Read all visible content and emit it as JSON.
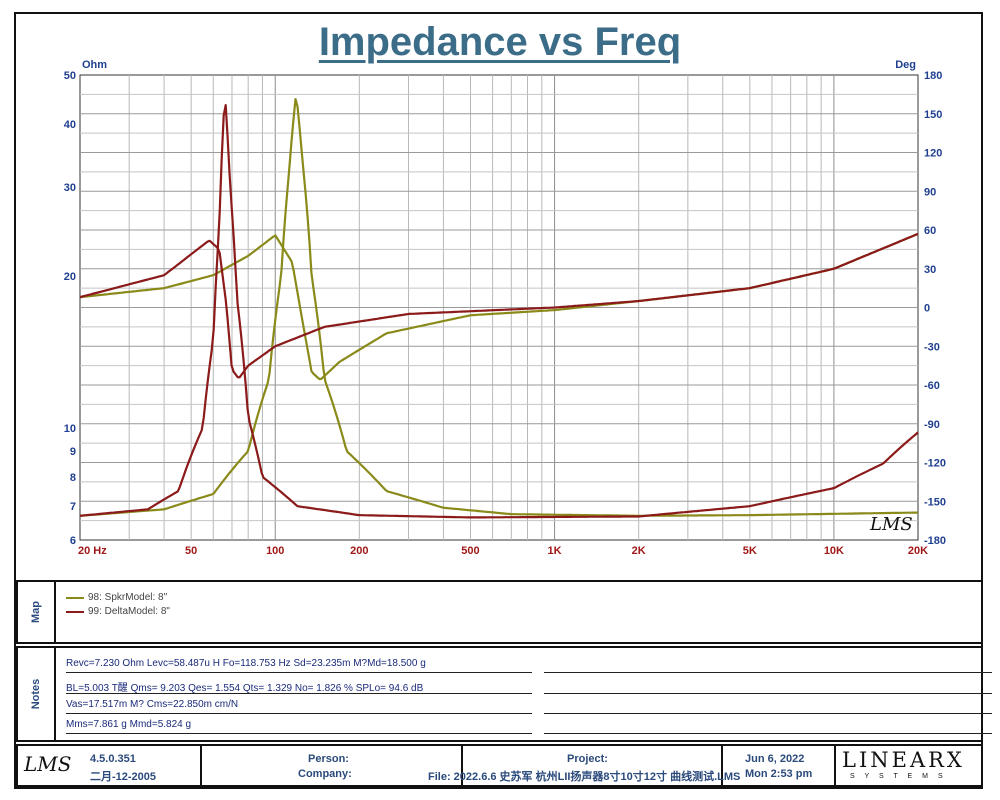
{
  "title": "Impedance vs Freq",
  "chart_data": {
    "type": "line",
    "xscale": "log",
    "xlim": [
      20,
      20000
    ],
    "ylim_left": [
      6,
      50
    ],
    "yscale_left": "log",
    "ylim_right": [
      -180,
      180
    ],
    "left_unit": "Ohm",
    "right_unit": "Deg",
    "x_tick_labels": [
      "20  Hz",
      "50",
      "100",
      "200",
      "500",
      "1K",
      "2K",
      "5K",
      "10K",
      "20K"
    ],
    "x_tick_values": [
      20,
      50,
      100,
      200,
      500,
      1000,
      2000,
      5000,
      10000,
      20000
    ],
    "left_tick_labels": [
      "50",
      "40",
      "30",
      "20",
      "10",
      "9",
      "8",
      "7",
      "6"
    ],
    "left_tick_values": [
      50,
      40,
      30,
      20,
      10,
      9,
      8,
      7,
      6
    ],
    "right_tick_labels": [
      "180",
      "150",
      "120",
      "90",
      "60",
      "30",
      "0",
      "-30",
      "-60",
      "-90",
      "-120",
      "-150",
      "-180"
    ],
    "right_tick_values": [
      180,
      150,
      120,
      90,
      60,
      30,
      0,
      -30,
      -60,
      -90,
      -120,
      -150,
      -180
    ],
    "watermark": "LMS",
    "colors": {
      "spkr": "#8a8a1a",
      "delta": "#8b1a1a",
      "grid": "#a9a9a9",
      "axis_text": "#1f3f8f"
    },
    "series": [
      {
        "name": "98: SpkrModel: 8\"",
        "quantity": "impedance",
        "axis": "left",
        "points": [
          [
            20,
            6.7
          ],
          [
            40,
            6.9
          ],
          [
            60,
            7.4
          ],
          [
            80,
            9.0
          ],
          [
            95,
            12.5
          ],
          [
            105,
            20
          ],
          [
            112,
            32
          ],
          [
            118.75,
            46
          ],
          [
            125,
            34
          ],
          [
            135,
            20
          ],
          [
            150,
            12.5
          ],
          [
            180,
            9.0
          ],
          [
            250,
            7.5
          ],
          [
            400,
            6.95
          ],
          [
            700,
            6.75
          ],
          [
            2000,
            6.7
          ],
          [
            5000,
            6.72
          ],
          [
            20000,
            6.8
          ]
        ]
      },
      {
        "name": "98: SpkrModel: 8\"",
        "quantity": "phase",
        "axis": "right",
        "points": [
          [
            20,
            8
          ],
          [
            40,
            15
          ],
          [
            60,
            25
          ],
          [
            80,
            40
          ],
          [
            100,
            56
          ],
          [
            115,
            35
          ],
          [
            125,
            -10
          ],
          [
            135,
            -50
          ],
          [
            145,
            -56
          ],
          [
            170,
            -42
          ],
          [
            250,
            -20
          ],
          [
            500,
            -6
          ],
          [
            1000,
            -2
          ],
          [
            2000,
            5
          ],
          [
            5000,
            15
          ],
          [
            10000,
            30
          ],
          [
            20000,
            57
          ]
        ]
      },
      {
        "name": "99: DeltaModel: 8\"",
        "quantity": "impedance",
        "axis": "left",
        "points": [
          [
            20,
            6.7
          ],
          [
            35,
            6.9
          ],
          [
            45,
            7.5
          ],
          [
            55,
            10
          ],
          [
            60,
            15
          ],
          [
            63,
            25
          ],
          [
            66,
            46
          ],
          [
            69,
            30
          ],
          [
            73,
            18
          ],
          [
            80,
            10.5
          ],
          [
            90,
            8.0
          ],
          [
            120,
            7.0
          ],
          [
            200,
            6.72
          ],
          [
            500,
            6.65
          ],
          [
            2000,
            6.68
          ],
          [
            5000,
            7.0
          ],
          [
            10000,
            7.6
          ],
          [
            15000,
            8.5
          ],
          [
            20000,
            9.8
          ]
        ]
      },
      {
        "name": "99: DeltaModel: 8\"",
        "quantity": "phase",
        "axis": "right",
        "points": [
          [
            20,
            8
          ],
          [
            40,
            25
          ],
          [
            58,
            52
          ],
          [
            63,
            45
          ],
          [
            67,
            0
          ],
          [
            70,
            -48
          ],
          [
            74,
            -55
          ],
          [
            80,
            -45
          ],
          [
            100,
            -30
          ],
          [
            150,
            -15
          ],
          [
            300,
            -5
          ],
          [
            1000,
            0
          ],
          [
            2000,
            5
          ],
          [
            5000,
            15
          ],
          [
            10000,
            30
          ],
          [
            20000,
            57
          ]
        ]
      }
    ]
  },
  "map": {
    "label": "Map",
    "items": [
      {
        "text": "98: SpkrModel: 8\"",
        "color": "#8a8a1a"
      },
      {
        "text": "99: DeltaModel: 8\"",
        "color": "#8b1a1a"
      }
    ]
  },
  "notes": {
    "label": "Notes",
    "lines": [
      "Revc=7.230 Ohm  Levc=58.487u H  Fo=118.753 Hz  Sd=23.235m M?Md=18.500 g",
      "BL=5.003 T醒  Qms= 9.203  Qes= 1.554  Qts= 1.329  No= 1.826 %  SPLo= 94.6 dB",
      "Vas=17.517m M? Cms=22.850m cm/N",
      "Mms=7.861 g  Mmd=5.824 g"
    ]
  },
  "footer": {
    "logo": "LMS",
    "version": "4.5.0.351",
    "date": "二月-12-2005",
    "person_label": "Person:",
    "company_label": "Company:",
    "project_label": "Project:",
    "file_text": "File: 2022.6.6 史苏军 杭州LII扬声器8寸10寸12寸 曲线测试.LMS",
    "run_date": "Jun  6, 2022",
    "run_time": "Mon  2:53 pm",
    "brand": "LINEARX",
    "brand_sub": "S Y S T E M S"
  }
}
